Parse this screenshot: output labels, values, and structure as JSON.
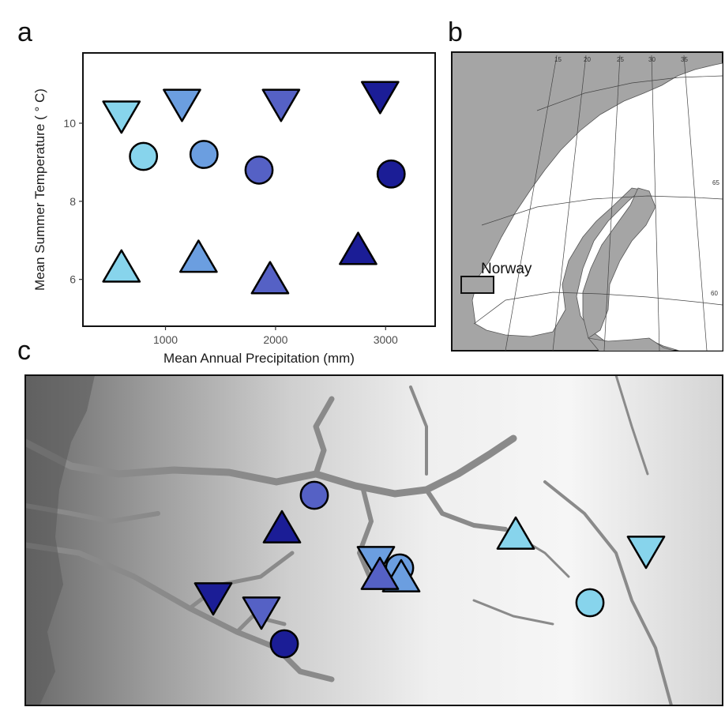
{
  "panels": {
    "a": "a",
    "b": "b",
    "c": "c"
  },
  "chart_data": {
    "type": "scatter",
    "xlabel": "Mean Annual Precipitation (mm)",
    "ylabel": "Mean Summer Temperature ( ° C)",
    "xlim": [
      250,
      3450
    ],
    "ylim": [
      4.8,
      11.8
    ],
    "xticks": [
      1000,
      2000,
      3000
    ],
    "yticks": [
      6,
      8,
      10
    ],
    "grid": false,
    "colors": {
      "c1": "#87d4ec",
      "c2": "#6b9ee0",
      "c3": "#5561c5",
      "c4": "#1b1d96"
    },
    "points": [
      {
        "x": 600,
        "y": 10.2,
        "shape": "triangle-down",
        "color": "c1"
      },
      {
        "x": 1150,
        "y": 10.5,
        "shape": "triangle-down",
        "color": "c2"
      },
      {
        "x": 2050,
        "y": 10.5,
        "shape": "triangle-down",
        "color": "c3"
      },
      {
        "x": 2950,
        "y": 10.7,
        "shape": "triangle-down",
        "color": "c4"
      },
      {
        "x": 800,
        "y": 9.15,
        "shape": "circle",
        "color": "c1"
      },
      {
        "x": 1350,
        "y": 9.2,
        "shape": "circle",
        "color": "c2"
      },
      {
        "x": 1850,
        "y": 8.8,
        "shape": "circle",
        "color": "c3"
      },
      {
        "x": 3050,
        "y": 8.7,
        "shape": "circle",
        "color": "c4"
      },
      {
        "x": 600,
        "y": 6.3,
        "shape": "triangle-up",
        "color": "c1"
      },
      {
        "x": 1300,
        "y": 6.55,
        "shape": "triangle-up",
        "color": "c2"
      },
      {
        "x": 1950,
        "y": 6.0,
        "shape": "triangle-up",
        "color": "c3"
      },
      {
        "x": 2750,
        "y": 6.75,
        "shape": "triangle-up",
        "color": "c4"
      }
    ]
  },
  "map_b": {
    "label": "Norway",
    "lon_labels": [
      "15",
      "20",
      "25",
      "30",
      "35"
    ],
    "lat_labels": [
      "65",
      "60"
    ]
  },
  "map_c": {
    "sites": [
      {
        "shape": "circle",
        "color": "c3"
      },
      {
        "shape": "triangle-up",
        "color": "c4"
      },
      {
        "shape": "triangle-down",
        "color": "c4"
      },
      {
        "shape": "triangle-down",
        "color": "c3"
      },
      {
        "shape": "circle",
        "color": "c4"
      },
      {
        "shape": "triangle-down",
        "color": "c2"
      },
      {
        "shape": "circle",
        "color": "c2"
      },
      {
        "shape": "triangle-up",
        "color": "c2"
      },
      {
        "shape": "triangle-up",
        "color": "c3"
      },
      {
        "shape": "triangle-up",
        "color": "c1"
      },
      {
        "shape": "triangle-down",
        "color": "c1"
      },
      {
        "shape": "circle",
        "color": "c1"
      }
    ]
  }
}
